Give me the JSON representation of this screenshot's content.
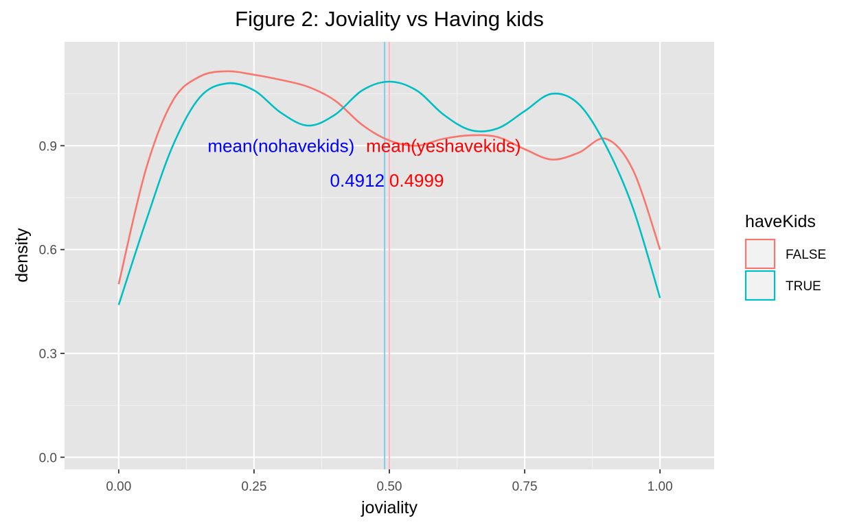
{
  "chart_data": {
    "type": "line",
    "subtype": "density",
    "title": "Figure 2: Joviality vs Having kids",
    "xlabel": "joviality",
    "ylabel": "density",
    "xlim": [
      -0.1,
      1.1
    ],
    "ylim": [
      -0.035,
      1.2
    ],
    "x_ticks": [
      0.0,
      0.25,
      0.5,
      0.75,
      1.0
    ],
    "x_tick_labels": [
      "0.00",
      "0.25",
      "0.50",
      "0.75",
      "1.00"
    ],
    "y_ticks": [
      0.0,
      0.3,
      0.6,
      0.9
    ],
    "y_tick_labels": [
      "0.0",
      "0.3",
      "0.6",
      "0.9"
    ],
    "grid": true,
    "background": "#e5e5e5",
    "legend": {
      "title": "haveKids",
      "placement": "right",
      "entries": [
        {
          "label": "FALSE",
          "color": "#f8766d"
        },
        {
          "label": "TRUE",
          "color": "#00bfc4"
        }
      ]
    },
    "series": [
      {
        "name": "FALSE",
        "color": "#f8766d",
        "x": [
          0.0,
          0.05,
          0.1,
          0.15,
          0.2,
          0.25,
          0.3,
          0.35,
          0.4,
          0.45,
          0.5,
          0.55,
          0.6,
          0.65,
          0.7,
          0.75,
          0.8,
          0.85,
          0.9,
          0.95,
          1.0
        ],
        "y": [
          0.5,
          0.83,
          1.03,
          1.1,
          1.115,
          1.105,
          1.09,
          1.07,
          1.03,
          0.96,
          0.915,
          0.9,
          0.92,
          0.93,
          0.925,
          0.89,
          0.86,
          0.88,
          0.92,
          0.83,
          0.6
        ]
      },
      {
        "name": "TRUE",
        "color": "#00bfc4",
        "x": [
          0.0,
          0.05,
          0.1,
          0.15,
          0.2,
          0.25,
          0.3,
          0.35,
          0.4,
          0.45,
          0.5,
          0.55,
          0.6,
          0.65,
          0.7,
          0.75,
          0.8,
          0.85,
          0.9,
          0.95,
          1.0
        ],
        "y": [
          0.44,
          0.68,
          0.9,
          1.04,
          1.08,
          1.06,
          0.995,
          0.958,
          0.99,
          1.06,
          1.085,
          1.06,
          0.99,
          0.945,
          0.95,
          1.0,
          1.05,
          1.02,
          0.9,
          0.72,
          0.46
        ]
      }
    ],
    "vlines": [
      {
        "x": 0.4912,
        "color": "#87ceeb",
        "group": "TRUE"
      },
      {
        "x": 0.4999,
        "color": "#ffb6c1",
        "group": "FALSE"
      }
    ],
    "annotations": [
      {
        "text": "mean(nohavekids)",
        "x": 0.3,
        "y": 0.9,
        "color": "#0000ff",
        "anchor": "middle"
      },
      {
        "text": "mean(yeshavekids)",
        "x": 0.6,
        "y": 0.9,
        "color": "#ff0000",
        "anchor": "middle"
      },
      {
        "text": "0.4912",
        "x": 0.4912,
        "y": 0.8,
        "color": "#0000ff",
        "anchor": "end"
      },
      {
        "text": "0.4999",
        "x": 0.4999,
        "y": 0.8,
        "color": "#ff0000",
        "anchor": "start"
      }
    ]
  }
}
